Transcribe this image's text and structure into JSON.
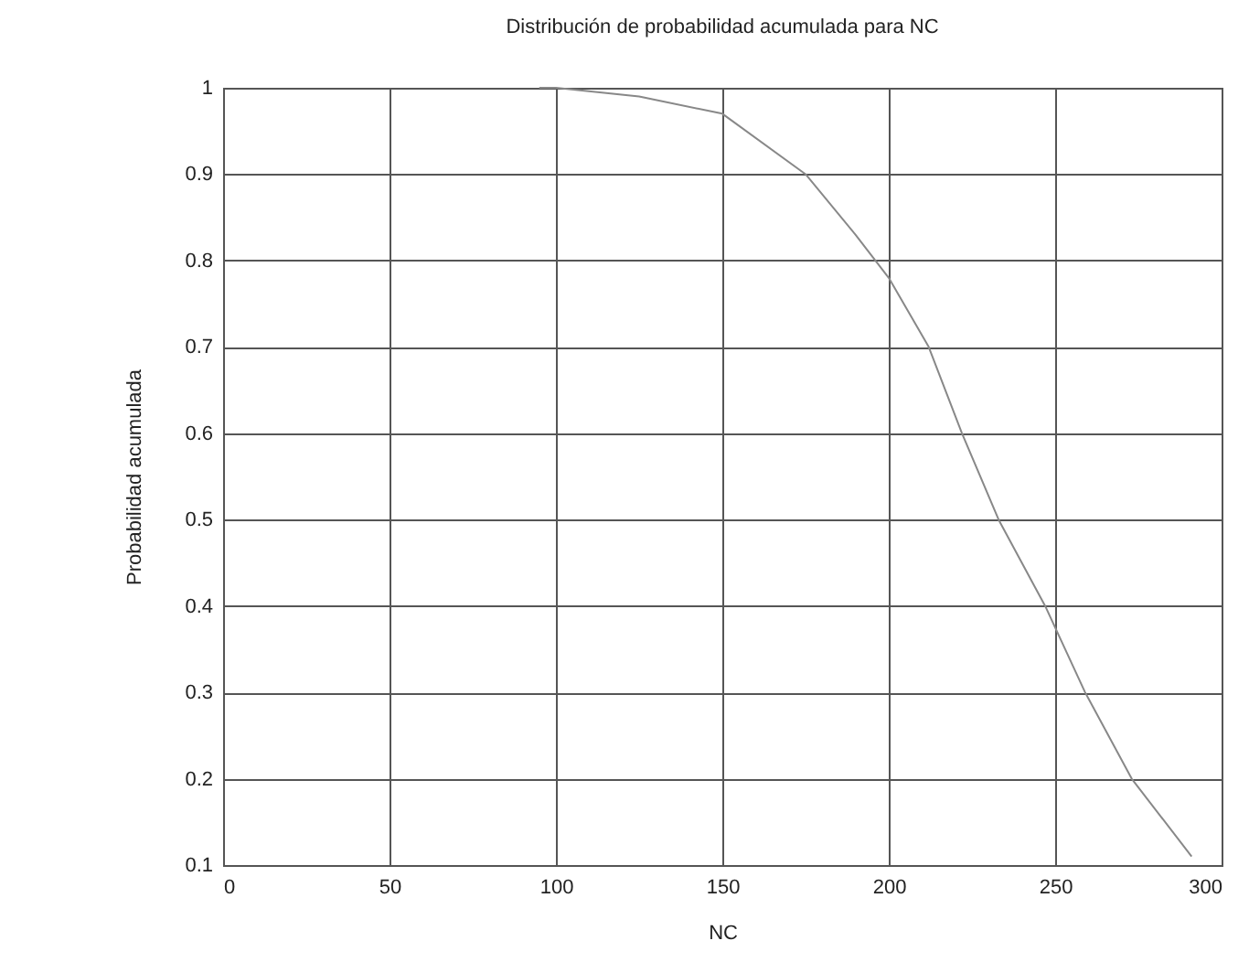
{
  "chart_data": {
    "type": "line",
    "title": "Distribución de probabilidad acumulada para NC",
    "xlabel": "NC",
    "ylabel": "Probabilidad acumulada",
    "x": [
      95,
      100,
      125,
      150,
      175,
      190,
      200,
      212,
      222,
      233,
      247,
      259,
      273,
      291
    ],
    "series": [
      {
        "color": "#888888",
        "values": [
          1.0,
          1.0,
          0.99,
          0.97,
          0.9,
          0.83,
          0.78,
          0.7,
          0.6,
          0.5,
          0.4,
          0.3,
          0.2,
          0.11
        ]
      }
    ],
    "xlim": [
      0,
      300
    ],
    "xticks": [
      0,
      50,
      100,
      150,
      200,
      250,
      300
    ],
    "ylim": [
      0.1,
      1
    ],
    "yticks": [
      0.1,
      0.2,
      0.3,
      0.4,
      0.5,
      0.6,
      0.7,
      0.8,
      0.9,
      1
    ],
    "grid": true,
    "marker": "none",
    "line_style": "solid"
  }
}
